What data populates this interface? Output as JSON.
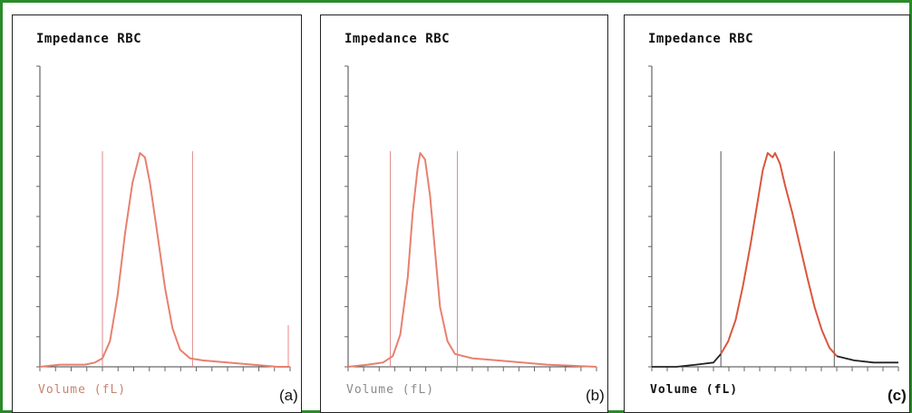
{
  "chart_data": [
    {
      "type": "line",
      "title": "Impedance RBC",
      "xlabel": "Volume (fL)",
      "panel_label": "(a)",
      "x_range": [
        0,
        1
      ],
      "y_range": [
        0,
        1
      ],
      "discriminator_lines": [
        0.25,
        0.61
      ],
      "curve_color": "#e8806f",
      "xlabel_color": "#c9826f",
      "right_marker": true,
      "curve": [
        [
          0.0,
          0.0
        ],
        [
          0.08,
          0.01
        ],
        [
          0.18,
          0.01
        ],
        [
          0.22,
          0.02
        ],
        [
          0.25,
          0.04
        ],
        [
          0.28,
          0.12
        ],
        [
          0.31,
          0.33
        ],
        [
          0.34,
          0.62
        ],
        [
          0.37,
          0.86
        ],
        [
          0.4,
          1.0
        ],
        [
          0.42,
          0.98
        ],
        [
          0.44,
          0.86
        ],
        [
          0.47,
          0.62
        ],
        [
          0.5,
          0.37
        ],
        [
          0.53,
          0.18
        ],
        [
          0.56,
          0.08
        ],
        [
          0.6,
          0.04
        ],
        [
          0.65,
          0.03
        ],
        [
          0.75,
          0.02
        ],
        [
          0.85,
          0.01
        ],
        [
          0.95,
          0.0
        ],
        [
          1.0,
          0.0
        ]
      ]
    },
    {
      "type": "line",
      "title": "Impedance RBC",
      "xlabel": "Volume (fL)",
      "panel_label": "(b)",
      "x_range": [
        0,
        1
      ],
      "y_range": [
        0,
        1
      ],
      "discriminator_lines": [
        0.17,
        0.44
      ],
      "curve_color": "#e8806f",
      "xlabel_color": "#8a8a8a",
      "right_marker": false,
      "curve": [
        [
          0.0,
          0.0
        ],
        [
          0.08,
          0.01
        ],
        [
          0.14,
          0.02
        ],
        [
          0.18,
          0.05
        ],
        [
          0.21,
          0.15
        ],
        [
          0.24,
          0.42
        ],
        [
          0.26,
          0.72
        ],
        [
          0.28,
          0.93
        ],
        [
          0.29,
          1.0
        ],
        [
          0.31,
          0.97
        ],
        [
          0.33,
          0.8
        ],
        [
          0.35,
          0.54
        ],
        [
          0.37,
          0.28
        ],
        [
          0.4,
          0.12
        ],
        [
          0.43,
          0.06
        ],
        [
          0.5,
          0.04
        ],
        [
          0.6,
          0.03
        ],
        [
          0.7,
          0.02
        ],
        [
          0.8,
          0.01
        ],
        [
          1.0,
          0.0
        ]
      ]
    },
    {
      "type": "line",
      "title": "Impedance RBC",
      "xlabel": "Volume (fL)",
      "panel_label": "(c)",
      "x_range": [
        0,
        1
      ],
      "y_range": [
        0,
        1
      ],
      "discriminator_lines": [
        0.28,
        0.74
      ],
      "curve_color": "#d9573d",
      "xlabel_color": "#111111",
      "right_marker": false,
      "curve": [
        [
          0.28,
          0.06
        ],
        [
          0.31,
          0.12
        ],
        [
          0.34,
          0.22
        ],
        [
          0.37,
          0.38
        ],
        [
          0.4,
          0.57
        ],
        [
          0.43,
          0.78
        ],
        [
          0.45,
          0.92
        ],
        [
          0.47,
          1.0
        ],
        [
          0.49,
          0.98
        ],
        [
          0.5,
          1.0
        ],
        [
          0.52,
          0.95
        ],
        [
          0.54,
          0.85
        ],
        [
          0.57,
          0.72
        ],
        [
          0.6,
          0.57
        ],
        [
          0.63,
          0.42
        ],
        [
          0.66,
          0.28
        ],
        [
          0.69,
          0.17
        ],
        [
          0.72,
          0.09
        ],
        [
          0.75,
          0.05
        ]
      ],
      "tail_color": "#222222",
      "tail_left": [
        [
          0.0,
          0.0
        ],
        [
          0.1,
          0.0
        ],
        [
          0.18,
          0.01
        ],
        [
          0.25,
          0.02
        ],
        [
          0.28,
          0.06
        ]
      ],
      "tail_right": [
        [
          0.75,
          0.05
        ],
        [
          0.82,
          0.03
        ],
        [
          0.9,
          0.02
        ],
        [
          1.0,
          0.02
        ]
      ]
    }
  ]
}
